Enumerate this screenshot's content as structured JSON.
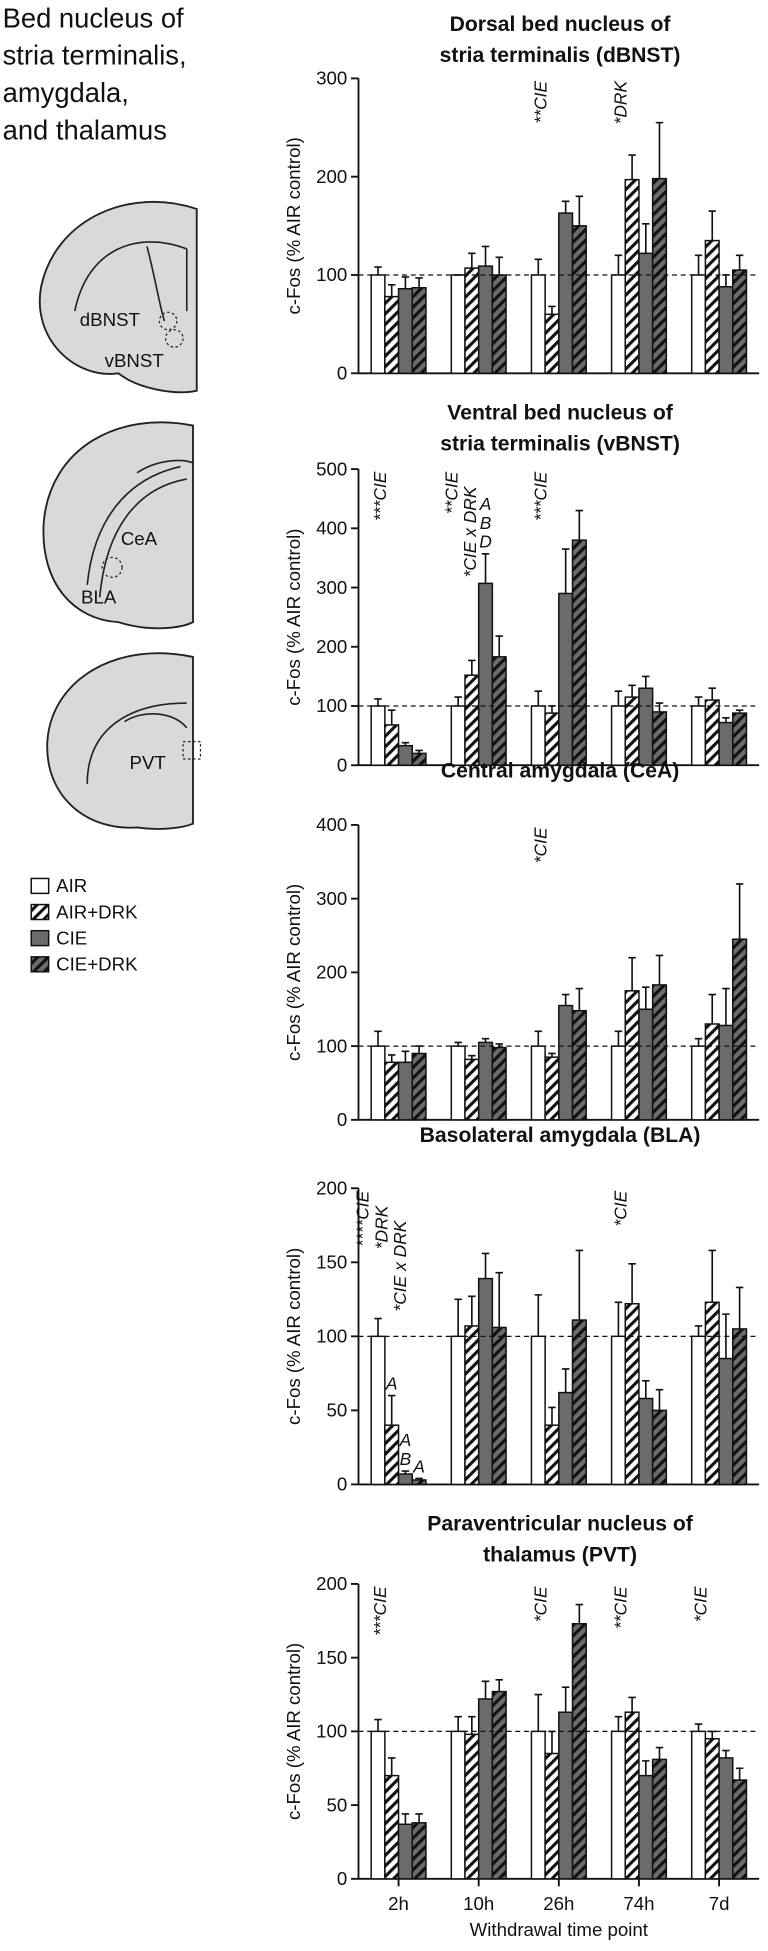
{
  "panel_title": [
    "Bed nucleus of",
    "stria terminalis,",
    "amygdala,",
    "and thalamus"
  ],
  "brain_labels": [
    "dBNST",
    "vBNST",
    "CeA",
    "BLA",
    "PVT"
  ],
  "chart_data": [
    {
      "type": "bar",
      "title": [
        "Dorsal bed nucleus of",
        "stria terminalis (dBNST)"
      ],
      "ylabel": "c-Fos (% AIR control)",
      "ylim": [
        0,
        300
      ],
      "yticks": [
        0,
        100,
        200,
        300
      ],
      "reference_line": 100,
      "group_notes": [
        null,
        null,
        [
          "**CIE"
        ],
        [
          "*DRK"
        ],
        null
      ],
      "series": [
        {
          "name": "AIR",
          "color": "#ffffff",
          "hatch": false,
          "values": [
            100,
            100,
            100,
            100,
            100
          ],
          "errors": [
            8,
            0,
            16,
            20,
            20
          ]
        },
        {
          "name": "AIR+DRK",
          "color": "#ffffff",
          "hatch": true,
          "values": [
            78,
            107,
            60,
            197,
            135
          ],
          "errors": [
            12,
            15,
            8,
            25,
            30
          ]
        },
        {
          "name": "CIE",
          "color": "#6b6b6b",
          "hatch": false,
          "values": [
            86,
            109,
            163,
            122,
            88
          ],
          "errors": [
            12,
            20,
            12,
            30,
            12
          ]
        },
        {
          "name": "CIE+DRK",
          "color": "#6b6b6b",
          "hatch": true,
          "values": [
            87,
            100,
            150,
            198,
            105
          ],
          "errors": [
            10,
            18,
            30,
            57,
            15
          ]
        }
      ]
    },
    {
      "type": "bar",
      "title": [
        "Ventral bed nucleus of",
        "stria terminalis (vBNST)"
      ],
      "ylabel": "c-Fos (% AIR control)",
      "ylim": [
        0,
        500
      ],
      "yticks": [
        0,
        100,
        200,
        300,
        400,
        500
      ],
      "reference_line": 100,
      "group_notes": [
        [
          "***CIE"
        ],
        [
          "**CIE",
          "*CIE x DRK"
        ],
        [
          "***CIE"
        ],
        null,
        null
      ],
      "series": [
        {
          "values": [
            100,
            100,
            100,
            100,
            100
          ],
          "errors": [
            12,
            15,
            25,
            25,
            15
          ]
        },
        {
          "values": [
            68,
            152,
            88,
            115,
            110
          ],
          "errors": [
            25,
            25,
            12,
            20,
            20
          ]
        },
        {
          "values": [
            33,
            307,
            290,
            130,
            72
          ],
          "errors": [
            5,
            50,
            75,
            20,
            8
          ],
          "letters": [
            null,
            [
              "A",
              "B",
              "D"
            ],
            null,
            null,
            null
          ]
        },
        {
          "values": [
            20,
            183,
            380,
            90,
            88
          ],
          "errors": [
            5,
            35,
            50,
            15,
            5
          ]
        }
      ]
    },
    {
      "type": "bar",
      "title": [
        "Central amygdala (CeA)"
      ],
      "ylabel": "c-Fos (% AIR control)",
      "ylim": [
        0,
        400
      ],
      "yticks": [
        0,
        100,
        200,
        300,
        400
      ],
      "reference_line": 100,
      "group_notes": [
        null,
        null,
        [
          "*CIE"
        ],
        null,
        null
      ],
      "series": [
        {
          "values": [
            100,
            100,
            100,
            100,
            100
          ],
          "errors": [
            20,
            5,
            20,
            20,
            10
          ]
        },
        {
          "values": [
            78,
            82,
            85,
            175,
            130
          ],
          "errors": [
            10,
            5,
            5,
            45,
            40
          ]
        },
        {
          "values": [
            78,
            105,
            155,
            150,
            128
          ],
          "errors": [
            15,
            5,
            15,
            30,
            50
          ]
        },
        {
          "values": [
            90,
            98,
            148,
            183,
            245
          ],
          "errors": [
            10,
            5,
            30,
            40,
            75
          ]
        }
      ]
    },
    {
      "type": "bar",
      "title": [
        "Basolateral amygdala (BLA)"
      ],
      "ylabel": "c-Fos (% AIR control)",
      "ylim": [
        0,
        200
      ],
      "yticks": [
        0,
        50,
        100,
        150,
        200
      ],
      "reference_line": 100,
      "group_notes": [
        [
          "****CIE",
          "*DRK",
          "*CIE x DRK"
        ],
        null,
        null,
        [
          "*CIE"
        ],
        null
      ],
      "series": [
        {
          "values": [
            100,
            100,
            100,
            100,
            100
          ],
          "errors": [
            12,
            25,
            28,
            23,
            7
          ]
        },
        {
          "values": [
            40,
            107,
            40,
            122,
            123
          ],
          "errors": [
            20,
            20,
            12,
            27,
            35
          ],
          "letters": [
            [
              "A"
            ],
            null,
            null,
            null,
            null
          ]
        },
        {
          "values": [
            7,
            139,
            62,
            58,
            85
          ],
          "errors": [
            2,
            17,
            16,
            12,
            30
          ],
          "letters": [
            [
              "A",
              "B"
            ],
            null,
            null,
            null,
            null
          ]
        },
        {
          "values": [
            3,
            106,
            111,
            50,
            105
          ],
          "errors": [
            1,
            37,
            47,
            14,
            28
          ],
          "letters": [
            [
              "A"
            ],
            null,
            null,
            null,
            null
          ]
        }
      ]
    },
    {
      "type": "bar",
      "title": [
        "Paraventricular nucleus of",
        "thalamus (PVT)"
      ],
      "ylabel": "c-Fos (% AIR control)",
      "ylim": [
        0,
        200
      ],
      "yticks": [
        0,
        50,
        100,
        150,
        200
      ],
      "reference_line": 100,
      "categories": [
        "2h",
        "10h",
        "26h",
        "74h",
        "7d"
      ],
      "xlabel": "Withdrawal time point",
      "group_notes": [
        [
          "***CIE"
        ],
        null,
        [
          "*CIE"
        ],
        [
          "**CIE"
        ],
        [
          "*CIE"
        ]
      ],
      "series": [
        {
          "values": [
            100,
            100,
            100,
            100,
            100
          ],
          "errors": [
            8,
            10,
            25,
            10,
            5
          ]
        },
        {
          "values": [
            70,
            98,
            85,
            113,
            95
          ],
          "errors": [
            12,
            12,
            15,
            10,
            5
          ]
        },
        {
          "values": [
            37,
            122,
            113,
            70,
            82
          ],
          "errors": [
            7,
            12,
            17,
            10,
            5
          ]
        },
        {
          "values": [
            38,
            127,
            173,
            81,
            67
          ],
          "errors": [
            6,
            8,
            13,
            8,
            8
          ]
        }
      ]
    }
  ]
}
